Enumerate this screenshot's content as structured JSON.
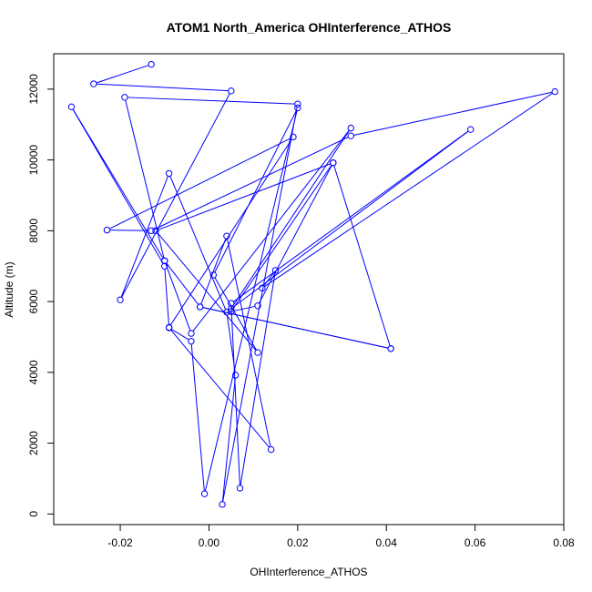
{
  "chart_data": {
    "type": "line",
    "title": "ATOM1 North_America OHInterference_ATHOS",
    "xlabel": "OHInterference_ATHOS",
    "ylabel": "Altitude (m)",
    "xlim": [
      -0.035,
      0.08
    ],
    "ylim": [
      -300,
      13000
    ],
    "xticks": [
      -0.02,
      0.0,
      0.02,
      0.04,
      0.06,
      0.08
    ],
    "xtick_labels": [
      "-0.02",
      "0.00",
      "0.02",
      "0.04",
      "0.06",
      "0.08"
    ],
    "yticks": [
      0,
      2000,
      4000,
      6000,
      8000,
      10000,
      12000
    ],
    "ytick_labels": [
      "0",
      "2000",
      "4000",
      "6000",
      "8000",
      "10000",
      "12000"
    ],
    "color": "#0000ff",
    "grid": false,
    "series": [
      {
        "points": [
          [
            -0.013,
            12700
          ],
          [
            -0.026,
            12150
          ],
          [
            0.005,
            11950
          ],
          [
            -0.02,
            6050
          ],
          [
            -0.009,
            9620
          ],
          [
            0.004,
            5700
          ],
          [
            0.006,
            3920
          ],
          [
            0.003,
            270
          ],
          [
            0.02,
            11580
          ],
          [
            -0.019,
            11770
          ],
          [
            -0.01,
            7150
          ],
          [
            -0.031,
            11500
          ],
          [
            -0.01,
            7000
          ],
          [
            -0.009,
            5270
          ],
          [
            0.019,
            10650
          ],
          [
            -0.023,
            8020
          ],
          [
            -0.013,
            8000
          ],
          [
            0.032,
            10680
          ],
          [
            0.078,
            11930
          ],
          [
            0.012,
            6380
          ],
          [
            0.015,
            6880
          ],
          [
            0.007,
            730
          ],
          [
            0.005,
            5950
          ],
          [
            0.059,
            10860
          ],
          [
            0.005,
            5800
          ],
          [
            0.032,
            10900
          ],
          [
            -0.004,
            5100
          ],
          [
            -0.01,
            7150
          ],
          [
            -0.002,
            5850
          ],
          [
            0.041,
            4670
          ],
          [
            -0.002,
            5850
          ],
          [
            0.004,
            7850
          ],
          [
            0.014,
            1820
          ],
          [
            -0.009,
            5260
          ],
          [
            -0.004,
            4880
          ],
          [
            -0.001,
            570
          ],
          [
            0.02,
            11470
          ],
          [
            0.001,
            6750
          ],
          [
            0.011,
            4560
          ],
          [
            -0.012,
            8000
          ],
          [
            0.028,
            9920
          ],
          [
            0.011,
            5880
          ],
          [
            0.005,
            5720
          ],
          [
            0.028,
            9920
          ],
          [
            0.041,
            4670
          ]
        ]
      }
    ]
  }
}
